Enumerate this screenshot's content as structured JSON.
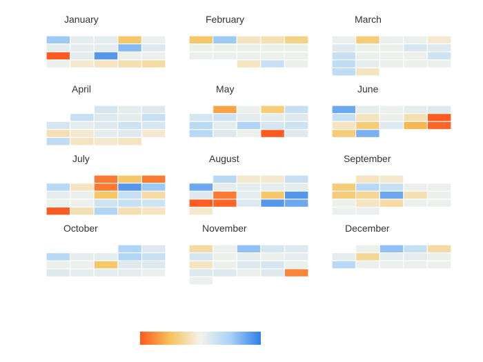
{
  "chart_data": {
    "type": "heatmap",
    "title": "",
    "layout": "calendar",
    "months_layout_columns": 3,
    "week_columns": 5,
    "color_scale": {
      "stops": [
        "#ff5a1f",
        "#f6c25a",
        "#f3f3ec",
        "#a9d2f7",
        "#2f7de6"
      ],
      "domain": [
        -1,
        1
      ]
    },
    "months": [
      {
        "name": "January",
        "rows": [
          [
            0.55,
            0.1,
            0.1,
            -0.45,
            0.05
          ],
          [
            0.1,
            0.1,
            0.1,
            0.65,
            0.15
          ],
          [
            -1.0,
            0.1,
            0.85,
            0.05,
            0.05
          ],
          [
            0.05,
            -0.1,
            -0.15,
            -0.2,
            -0.25
          ]
        ]
      },
      {
        "name": "February",
        "rows": [
          [
            -0.45,
            0.55,
            -0.15,
            -0.2,
            -0.35
          ],
          [
            0.05,
            0.05,
            0.05,
            0.05,
            0.05
          ],
          [
            0.05,
            0.05,
            0.05,
            0.05,
            0.05
          ],
          [
            null,
            null,
            -0.15,
            0.3,
            0.05
          ]
        ]
      },
      {
        "name": "March",
        "rows": [
          [
            0.05,
            -0.4,
            0.05,
            0.05,
            -0.1
          ],
          [
            0.15,
            0.05,
            0.05,
            0.2,
            0.15
          ],
          [
            0.3,
            0.05,
            0.05,
            0.05,
            0.25
          ],
          [
            0.35,
            0.1,
            0.05,
            0.05,
            0.05
          ],
          [
            0.35,
            -0.15,
            null,
            null,
            null
          ]
        ]
      },
      {
        "name": "April",
        "rows": [
          [
            null,
            null,
            0.2,
            0.1,
            0.15
          ],
          [
            null,
            0.3,
            0.15,
            0.1,
            0.3
          ],
          [
            0.2,
            0.1,
            0.15,
            0.25,
            0.2
          ],
          [
            -0.2,
            -0.1,
            0.1,
            0.15,
            -0.1
          ],
          [
            0.35,
            -0.15,
            -0.1,
            -0.15,
            null
          ]
        ]
      },
      {
        "name": "May",
        "rows": [
          [
            null,
            -0.65,
            0.05,
            -0.4,
            0.3
          ],
          [
            0.2,
            0.25,
            0.1,
            0.1,
            0.15
          ],
          [
            0.4,
            0.1,
            0.45,
            0.2,
            0.25
          ],
          [
            0.4,
            0.15,
            0.05,
            -1.0,
            0.15
          ]
        ]
      },
      {
        "name": "June",
        "rows": [
          [
            0.75,
            0.1,
            0.05,
            0.1,
            0.15
          ],
          [
            0.3,
            -0.15,
            0.05,
            -0.2,
            -1.0
          ],
          [
            -0.15,
            -0.4,
            0.15,
            -0.55,
            -0.95
          ],
          [
            -0.4,
            0.7,
            null,
            null,
            null
          ]
        ]
      },
      {
        "name": "July",
        "rows": [
          [
            null,
            null,
            -0.85,
            -0.45,
            -0.85
          ],
          [
            0.4,
            -0.15,
            -0.85,
            0.85,
            0.55
          ],
          [
            0.1,
            0.05,
            -0.45,
            0.3,
            -0.25
          ],
          [
            0.05,
            0.05,
            0.25,
            0.3,
            0.25
          ],
          [
            -1.0,
            -0.2,
            0.45,
            -0.2,
            -0.15
          ]
        ]
      },
      {
        "name": "August",
        "rows": [
          [
            null,
            0.4,
            -0.1,
            -0.1,
            0.3
          ],
          [
            0.75,
            0.1,
            0.1,
            0.1,
            0.1
          ],
          [
            0.15,
            -0.85,
            0.1,
            -0.45,
            0.85
          ],
          [
            -1.0,
            -0.95,
            0.15,
            0.85,
            0.75
          ],
          [
            -0.1,
            null,
            null,
            null,
            null
          ]
        ]
      },
      {
        "name": "September",
        "rows": [
          [
            null,
            -0.15,
            -0.1,
            null,
            null
          ],
          [
            -0.4,
            0.4,
            0.3,
            0.05,
            0.05
          ],
          [
            -0.4,
            -0.3,
            0.75,
            -0.2,
            0.05
          ],
          [
            0.05,
            -0.15,
            -0.25,
            0.05,
            0.05
          ],
          [
            0.05,
            0.05,
            null,
            null,
            null
          ]
        ]
      },
      {
        "name": "October",
        "rows": [
          [
            null,
            null,
            null,
            0.45,
            0.15
          ],
          [
            0.4,
            0.1,
            0.1,
            0.45,
            0.3
          ],
          [
            0.05,
            0.05,
            -0.45,
            0.15,
            0.15
          ],
          [
            0.15,
            0.1,
            0.1,
            0.1,
            0.05
          ]
        ]
      },
      {
        "name": "November",
        "rows": [
          [
            -0.25,
            0.05,
            0.6,
            0.2,
            0.15
          ],
          [
            0.2,
            0.05,
            0.1,
            0.05,
            0.1
          ],
          [
            -0.15,
            0.05,
            0.15,
            0.2,
            0.05
          ],
          [
            0.15,
            0.15,
            0.05,
            0.15,
            -0.8
          ],
          [
            0.05,
            null,
            null,
            null,
            null
          ]
        ]
      },
      {
        "name": "December",
        "rows": [
          [
            null,
            0.05,
            0.6,
            0.3,
            -0.25
          ],
          [
            0.1,
            -0.3,
            0.1,
            0.1,
            0.05
          ],
          [
            0.4,
            0.05,
            0.05,
            0.05,
            0.05
          ]
        ]
      }
    ]
  }
}
